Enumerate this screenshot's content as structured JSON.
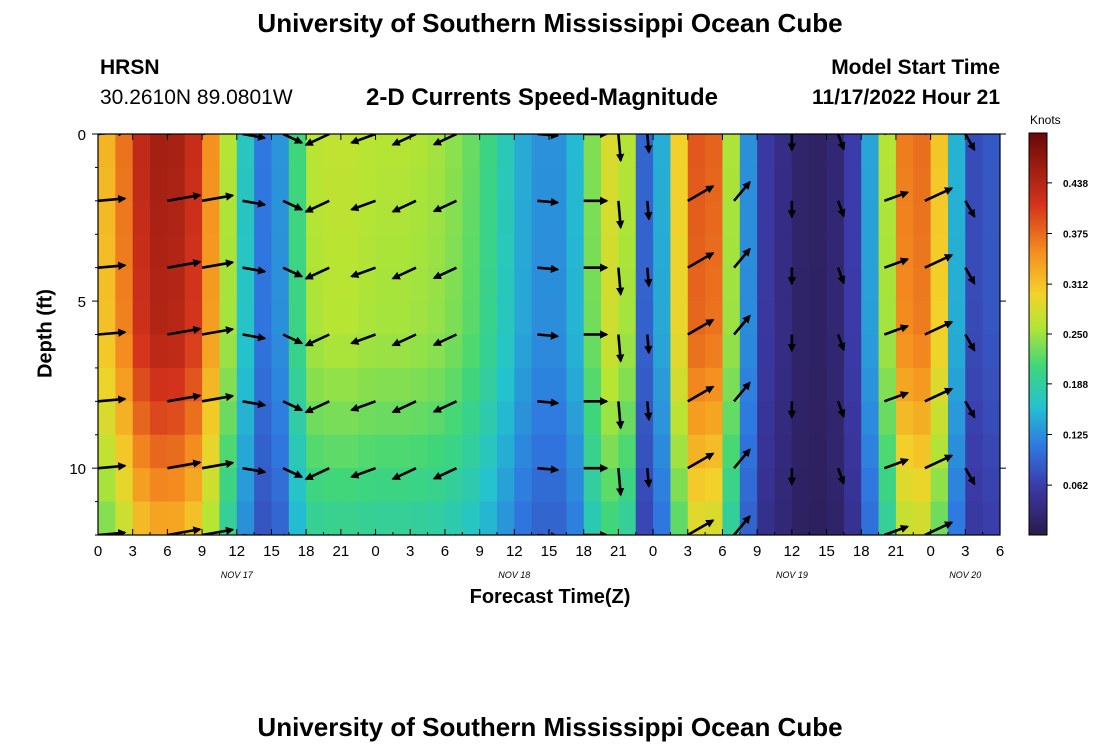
{
  "header": {
    "title": "University of Southern Mississippi Ocean Cube",
    "station": "HRSN",
    "coords": "30.2610N  89.0801W",
    "plot_title": "2-D Currents Speed-Magnitude",
    "model_label": "Model Start Time",
    "model_time": "11/17/2022 Hour 21"
  },
  "footer": {
    "title": "University of Southern Mississippi Ocean Cube"
  },
  "colorbar": {
    "unit": "Knots",
    "ticks": [
      "0.438",
      "0.375",
      "0.312",
      "0.250",
      "0.188",
      "0.125",
      "0.062"
    ],
    "tick_values": [
      0.438,
      0.375,
      0.312,
      0.25,
      0.188,
      0.125,
      0.062
    ],
    "range": [
      0.0,
      0.5
    ]
  },
  "chart_data": {
    "type": "heatmap",
    "title": "2-D Currents Speed-Magnitude",
    "xlabel": "Forecast Time(Z)",
    "ylabel": "Depth (ft)",
    "x_tick_labels": [
      "0",
      "3",
      "6",
      "9",
      "12",
      "15",
      "18",
      "21",
      "0",
      "3",
      "6",
      "9",
      "12",
      "15",
      "18",
      "21",
      "0",
      "3",
      "6",
      "9",
      "12",
      "15",
      "18",
      "21",
      "0",
      "3",
      "6"
    ],
    "x_range_hours": [
      0,
      78
    ],
    "date_labels": [
      {
        "text": "NOV 17",
        "hour": 12
      },
      {
        "text": "NOV 18",
        "hour": 36
      },
      {
        "text": "NOV 19",
        "hour": 60
      },
      {
        "text": "NOV 20",
        "hour": 75
      }
    ],
    "y_tick_labels": [
      "0",
      "5",
      "10"
    ],
    "y_tick_values": [
      0,
      5,
      10
    ],
    "ylim": [
      12,
      0
    ],
    "depths_ft": [
      0,
      1,
      2,
      3,
      4,
      5,
      6,
      7,
      8,
      9,
      10,
      11,
      12
    ],
    "speed_profile_hours": [
      0,
      2,
      4,
      6,
      8,
      9,
      10.5,
      12,
      13.5,
      15,
      16.5,
      18,
      21,
      24,
      27,
      30,
      33,
      35,
      37,
      39,
      41,
      42.5,
      44,
      45.5,
      46.5,
      47.5,
      49,
      50.5,
      52,
      53,
      54.5,
      56,
      57.5,
      59,
      60.5,
      62,
      63.5,
      65,
      66.5,
      68,
      69.5,
      71,
      72.5,
      73.5,
      75,
      76.5,
      78
    ],
    "speed_profile_knots": [
      0.3,
      0.36,
      0.44,
      0.46,
      0.43,
      0.4,
      0.3,
      0.22,
      0.12,
      0.1,
      0.16,
      0.26,
      0.27,
      0.26,
      0.26,
      0.25,
      0.22,
      0.18,
      0.14,
      0.12,
      0.14,
      0.23,
      0.28,
      0.3,
      0.14,
      0.08,
      0.16,
      0.33,
      0.4,
      0.4,
      0.28,
      0.14,
      0.06,
      0.04,
      0.02,
      0.015,
      0.02,
      0.05,
      0.12,
      0.24,
      0.36,
      0.38,
      0.34,
      0.22,
      0.08,
      0.07,
      0.1
    ],
    "depth_attenuation": {
      "depth_ft": [
        0,
        6,
        8,
        12
      ],
      "factor": [
        1.0,
        0.97,
        0.9,
        0.72
      ]
    },
    "vectors": {
      "hours": [
        0,
        6,
        9,
        12.5,
        16,
        20,
        24,
        27.5,
        31,
        38,
        42,
        45,
        47.5,
        51,
        55,
        60,
        64,
        68,
        71.5,
        75
      ],
      "depths_ft": [
        0,
        2,
        4,
        6,
        8,
        10,
        12
      ],
      "direction_deg": [
        85,
        80,
        80,
        100,
        115,
        245,
        250,
        245,
        245,
        95,
        90,
        175,
        175,
        60,
        40,
        180,
        160,
        70,
        65,
        150
      ],
      "scale_knots": 0.45
    }
  }
}
